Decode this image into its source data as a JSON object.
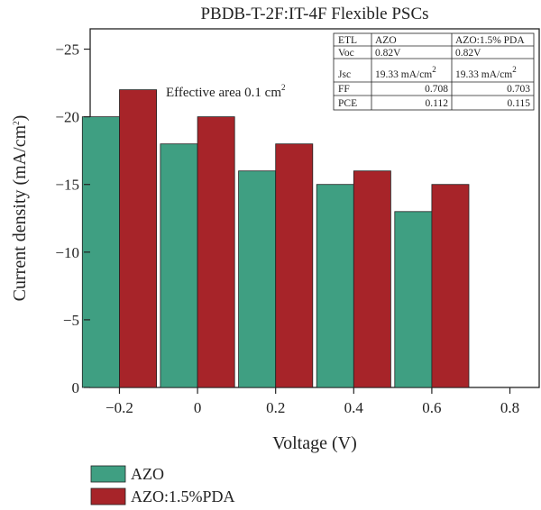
{
  "chart_data": {
    "type": "bar",
    "title": "PBDB-T-2F:IT-4F Flexible PSCs",
    "xlabel": "Voltage (V)",
    "ylabel": "Current density (mA/cm",
    "ylabel_sup": "2",
    "ylabel_tail": ")",
    "x_ticks": [
      "−0.2",
      "0",
      "0.2",
      "0.4",
      "0.6",
      "0.8"
    ],
    "y_ticks": [
      {
        "value": -25,
        "label": "−25"
      },
      {
        "value": -20,
        "label": "−20"
      },
      {
        "value": -15,
        "label": "−15"
      },
      {
        "value": -10,
        "label": "−10"
      },
      {
        "value": -5,
        "label": "−5"
      },
      {
        "value": 0,
        "label": "0"
      }
    ],
    "ylim": [
      0,
      -26.5
    ],
    "xlim": [
      -0.275,
      0.875
    ],
    "y_axis_inverted": true,
    "grid": false,
    "legend_position": "below-left",
    "categories": [
      "−0.2",
      "0",
      "0.2",
      "0.4",
      "0.6"
    ],
    "category_x": [
      -0.2,
      0,
      0.2,
      0.4,
      0.6
    ],
    "series": [
      {
        "name": "AZO",
        "color": "#3f9f82",
        "values": [
          -20,
          -18,
          -16,
          -15,
          -13
        ]
      },
      {
        "name": "AZO:1.5%PDA",
        "color": "#a72429",
        "values": [
          -22,
          -20,
          -18,
          -16,
          -15
        ]
      }
    ],
    "annotation": {
      "text": "Effective area 0.1 cm",
      "sup": "2"
    },
    "table": {
      "header": [
        "ETL",
        "AZO",
        "AZO:1.5% PDA"
      ],
      "rows": [
        {
          "label": "Voc",
          "azo": "0.82V",
          "pda": "0.82V",
          "align": "left"
        },
        {
          "label": "Jsc",
          "azo": "19.33 mA/cm",
          "pda": "19.33 mA/cm",
          "sup": "2",
          "align": "left"
        },
        {
          "label": "FF",
          "azo": "0.708",
          "pda": "0.703",
          "align": "right"
        },
        {
          "label": "PCE",
          "azo": "0.112",
          "pda": "0.115",
          "align": "right"
        }
      ]
    }
  }
}
